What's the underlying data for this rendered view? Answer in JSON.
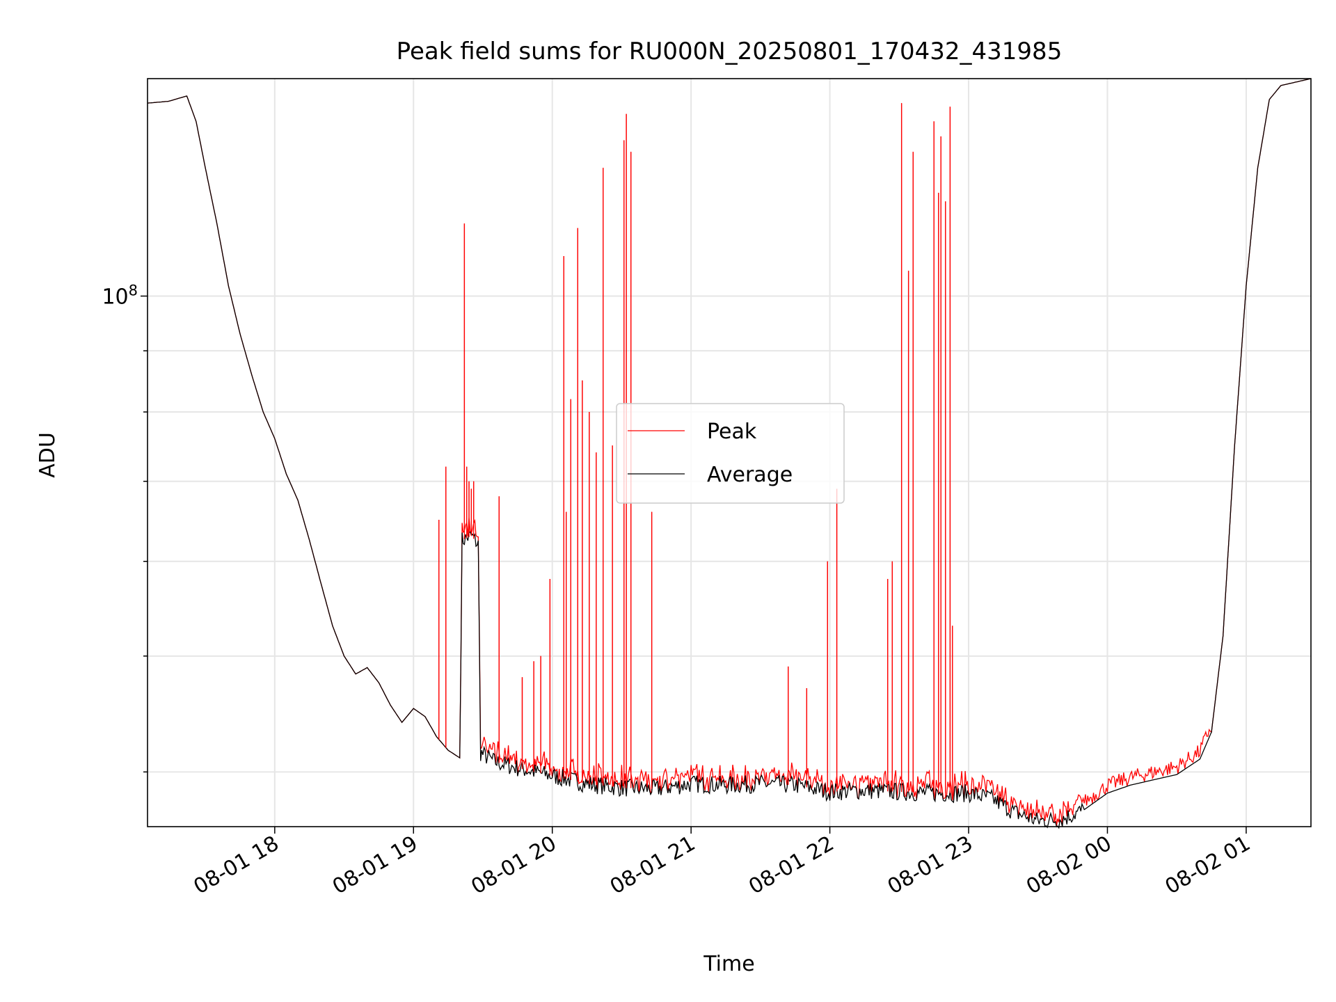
{
  "chart_data": {
    "type": "line",
    "title": "Peak field sums for RU000N_20250801_170432_431985",
    "xlabel": "Time",
    "ylabel": "ADU",
    "y_scale": "log",
    "xlim": [
      "2025-08-01 17:05",
      "2025-08-02 01:28"
    ],
    "ylim": [
      36000000,
      152000000
    ],
    "x_ticks": [
      "08-01 18",
      "08-01 19",
      "08-01 20",
      "08-01 21",
      "08-01 22",
      "08-01 23",
      "08-02 00",
      "08-02 01"
    ],
    "y_tick_major": "10^8",
    "y_tick_major_value": 100000000,
    "y_tick_minor_values": [
      40000000,
      50000000,
      60000000,
      70000000,
      80000000,
      90000000,
      200000000
    ],
    "grid": true,
    "legend_position": "center",
    "series": [
      {
        "name": "Peak",
        "color": "#ff0000",
        "base": "Average",
        "spikes": [
          [
            "2025-08-01 19:11",
            65000000
          ],
          [
            "2025-08-01 19:14",
            72000000
          ],
          [
            "2025-08-01 19:22",
            115000000
          ],
          [
            "2025-08-01 19:23",
            72000000
          ],
          [
            "2025-08-01 19:24",
            70000000
          ],
          [
            "2025-08-01 19:25",
            69000000
          ],
          [
            "2025-08-01 19:26",
            70000000
          ],
          [
            "2025-08-01 19:37",
            68000000
          ],
          [
            "2025-08-01 19:47",
            48000000
          ],
          [
            "2025-08-01 19:52",
            49500000
          ],
          [
            "2025-08-01 19:55",
            50000000
          ],
          [
            "2025-08-01 19:59",
            58000000
          ],
          [
            "2025-08-01 20:05",
            108000000
          ],
          [
            "2025-08-01 20:06",
            66000000
          ],
          [
            "2025-08-01 20:08",
            82000000
          ],
          [
            "2025-08-01 20:11",
            114000000
          ],
          [
            "2025-08-01 20:13",
            85000000
          ],
          [
            "2025-08-01 20:16",
            80000000
          ],
          [
            "2025-08-01 20:19",
            74000000
          ],
          [
            "2025-08-01 20:22",
            128000000
          ],
          [
            "2025-08-01 20:26",
            75000000
          ],
          [
            "2025-08-01 20:31",
            135000000
          ],
          [
            "2025-08-01 20:32",
            142000000
          ],
          [
            "2025-08-01 20:34",
            132000000
          ],
          [
            "2025-08-01 20:43",
            66000000
          ],
          [
            "2025-08-01 21:42",
            49000000
          ],
          [
            "2025-08-01 21:50",
            47000000
          ],
          [
            "2025-08-01 21:59",
            60000000
          ],
          [
            "2025-08-01 22:03",
            69000000
          ],
          [
            "2025-08-01 22:25",
            58000000
          ],
          [
            "2025-08-01 22:27",
            60000000
          ],
          [
            "2025-08-01 22:31",
            145000000
          ],
          [
            "2025-08-01 22:34",
            105000000
          ],
          [
            "2025-08-01 22:36",
            132000000
          ],
          [
            "2025-08-01 22:45",
            140000000
          ],
          [
            "2025-08-01 22:47",
            122000000
          ],
          [
            "2025-08-01 22:48",
            136000000
          ],
          [
            "2025-08-01 22:50",
            120000000
          ],
          [
            "2025-08-01 22:52",
            144000000
          ],
          [
            "2025-08-01 22:53",
            53000000
          ]
        ]
      },
      {
        "name": "Average",
        "color": "#000000",
        "points": [
          [
            "2025-08-01 17:05",
            145000000
          ],
          [
            "2025-08-01 17:14",
            145500000
          ],
          [
            "2025-08-01 17:22",
            147000000
          ],
          [
            "2025-08-01 17:26",
            140000000
          ],
          [
            "2025-08-01 17:30",
            128000000
          ],
          [
            "2025-08-01 17:35",
            115000000
          ],
          [
            "2025-08-01 17:40",
            102000000
          ],
          [
            "2025-08-01 17:45",
            93000000
          ],
          [
            "2025-08-01 17:50",
            86000000
          ],
          [
            "2025-08-01 17:55",
            80000000
          ],
          [
            "2025-08-01 18:00",
            76000000
          ],
          [
            "2025-08-01 18:05",
            71000000
          ],
          [
            "2025-08-01 18:10",
            67500000
          ],
          [
            "2025-08-01 18:15",
            62500000
          ],
          [
            "2025-08-01 18:20",
            57500000
          ],
          [
            "2025-08-01 18:25",
            53000000
          ],
          [
            "2025-08-01 18:30",
            50000000
          ],
          [
            "2025-08-01 18:35",
            48300000
          ],
          [
            "2025-08-01 18:40",
            48900000
          ],
          [
            "2025-08-01 18:45",
            47500000
          ],
          [
            "2025-08-01 18:50",
            45500000
          ],
          [
            "2025-08-01 18:55",
            44000000
          ],
          [
            "2025-08-01 19:00",
            45200000
          ],
          [
            "2025-08-01 19:05",
            44500000
          ],
          [
            "2025-08-01 19:10",
            42800000
          ],
          [
            "2025-08-01 19:15",
            41700000
          ],
          [
            "2025-08-01 19:20",
            41100000
          ],
          [
            "2025-08-01 19:21",
            62500000
          ],
          [
            "2025-08-01 19:25",
            63000000
          ],
          [
            "2025-08-01 19:28",
            62000000
          ],
          [
            "2025-08-01 19:29",
            41500000
          ],
          [
            "2025-08-01 19:35",
            40800000
          ],
          [
            "2025-08-01 19:45",
            40300000
          ],
          [
            "2025-08-01 20:00",
            39700000
          ],
          [
            "2025-08-01 20:15",
            39100000
          ],
          [
            "2025-08-01 20:30",
            38800000
          ],
          [
            "2025-08-01 20:45",
            38700000
          ],
          [
            "2025-08-01 21:00",
            39100000
          ],
          [
            "2025-08-01 21:15",
            39000000
          ],
          [
            "2025-08-01 21:30",
            39100000
          ],
          [
            "2025-08-01 21:45",
            39000000
          ],
          [
            "2025-08-01 22:00",
            38500000
          ],
          [
            "2025-08-01 22:15",
            38600000
          ],
          [
            "2025-08-01 22:30",
            38500000
          ],
          [
            "2025-08-01 22:45",
            38400000
          ],
          [
            "2025-08-01 23:00",
            38400000
          ],
          [
            "2025-08-01 23:10",
            38000000
          ],
          [
            "2025-08-01 23:20",
            37000000
          ],
          [
            "2025-08-01 23:30",
            36400000
          ],
          [
            "2025-08-01 23:40",
            36500000
          ],
          [
            "2025-08-01 23:50",
            37200000
          ],
          [
            "2025-08-02 00:00",
            38400000
          ],
          [
            "2025-08-02 00:10",
            39000000
          ],
          [
            "2025-08-02 00:20",
            39400000
          ],
          [
            "2025-08-02 00:30",
            39800000
          ],
          [
            "2025-08-02 00:40",
            41000000
          ],
          [
            "2025-08-02 00:45",
            43200000
          ],
          [
            "2025-08-02 00:50",
            52000000
          ],
          [
            "2025-08-02 00:55",
            75000000
          ],
          [
            "2025-08-02 01:00",
            102000000
          ],
          [
            "2025-08-02 01:05",
            128000000
          ],
          [
            "2025-08-02 01:10",
            146000000
          ],
          [
            "2025-08-02 01:15",
            150000000
          ],
          [
            "2025-08-02 01:28",
            152000000
          ]
        ]
      }
    ]
  }
}
